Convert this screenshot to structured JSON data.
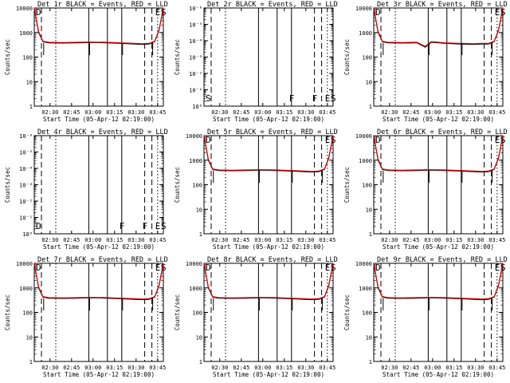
{
  "chart_data": [
    {
      "type": "line",
      "title": "Det 1r BLACK = Events, RED = LLD",
      "xlabel": "Start Time (05-Apr-12 02:19:00)",
      "ylabel": "Counts/sec",
      "log_y": true,
      "yticks": [
        "1",
        "10",
        "100",
        "1000",
        "10000"
      ],
      "ylim_exp": [
        0,
        4
      ],
      "xticks": [
        "02:30",
        "02:45",
        "03:00",
        "03:15",
        "03:30",
        "03:45"
      ],
      "xlim_min": [
        0,
        90
      ],
      "x_min": [
        0,
        3,
        6,
        10,
        20,
        30,
        40,
        50,
        60,
        70,
        75,
        80,
        84,
        87,
        90
      ],
      "series": [
        {
          "name": "Events",
          "values": [
            10000,
            1000,
            420,
            380,
            370,
            380,
            395,
            380,
            360,
            340,
            330,
            340,
            420,
            1200,
            10000
          ]
        },
        {
          "name": "LLD",
          "values": [
            10000,
            1100,
            440,
            400,
            390,
            400,
            410,
            400,
            380,
            360,
            350,
            360,
            440,
            1300,
            10000
          ]
        }
      ],
      "flags": [
        "D",
        "",
        "",
        "",
        "",
        "E",
        "S"
      ]
    },
    {
      "type": "line",
      "title": "Det 2r BLACK = Events, RED = LLD",
      "xlabel": "Start Time (05-Apr-12 02:19:00)",
      "ylabel": "Counts/sec",
      "log_y": true,
      "yticks": [
        "10⁰",
        "10⁻¹",
        "10⁻²",
        "10⁻³",
        "10⁻⁴",
        "10⁻⁵",
        "10⁻⁶"
      ],
      "ylim_exp": [
        0,
        -6
      ],
      "xticks": [
        "02:30",
        "02:45",
        "03:00",
        "03:15",
        "03:30",
        "03:45"
      ],
      "xlim_min": [
        0,
        90
      ],
      "x_min": [],
      "series": [],
      "flags": [
        "S",
        "",
        "",
        "F",
        "F",
        "E",
        "S"
      ]
    },
    {
      "type": "line",
      "title": "Det 3r BLACK = Events, RED = LLD",
      "xlabel": "Start Time (05-Apr-12 02:19:00)",
      "ylabel": "Counts/sec",
      "log_y": true,
      "yticks": [
        "1",
        "10",
        "100",
        "1000",
        "10000"
      ],
      "ylim_exp": [
        0,
        4
      ],
      "xticks": [
        "02:30",
        "02:45",
        "03:00",
        "03:15",
        "03:30",
        "03:45"
      ],
      "xlim_min": [
        0,
        90
      ],
      "x_min": [
        0,
        3,
        6,
        10,
        20,
        30,
        36,
        40,
        50,
        60,
        70,
        75,
        80,
        84,
        87,
        90
      ],
      "series": [
        {
          "name": "Events",
          "values": [
            10000,
            1000,
            420,
            380,
            370,
            380,
            250,
            400,
            360,
            340,
            330,
            340,
            340,
            420,
            1200,
            10000
          ]
        },
        {
          "name": "LLD",
          "values": [
            10000,
            1100,
            440,
            400,
            390,
            400,
            270,
            420,
            380,
            360,
            350,
            360,
            360,
            440,
            1300,
            10000
          ]
        }
      ],
      "flags": [
        "D",
        "",
        "",
        "",
        "",
        "E",
        "S"
      ]
    },
    {
      "type": "line",
      "title": "Det 4r BLACK = Events, RED = LLD",
      "xlabel": "Start Time (05-Apr-12 02:19:00)",
      "ylabel": "Counts/sec",
      "log_y": true,
      "yticks": [
        "10⁰",
        "10⁻¹",
        "10⁻²",
        "10⁻³",
        "10⁻⁴",
        "10⁻⁵",
        "10⁻⁶"
      ],
      "ylim_exp": [
        0,
        -6
      ],
      "xticks": [
        "02:30",
        "02:45",
        "03:00",
        "03:15",
        "03:30",
        "03:45"
      ],
      "xlim_min": [
        0,
        90
      ],
      "x_min": [],
      "series": [],
      "flags": [
        "D",
        "",
        "",
        "F",
        "F",
        "E",
        "S"
      ]
    },
    {
      "type": "line",
      "title": "Det 5r BLACK = Events, RED = LLD",
      "xlabel": "Start Time (05-Apr-12 02:19:00)",
      "ylabel": "Counts/sec",
      "log_y": true,
      "yticks": [
        "1",
        "10",
        "100",
        "1000",
        "10000"
      ],
      "ylim_exp": [
        0,
        4
      ],
      "xticks": [
        "02:30",
        "02:45",
        "03:00",
        "03:15",
        "03:30",
        "03:45"
      ],
      "xlim_min": [
        0,
        90
      ],
      "x_min": [
        0,
        3,
        6,
        10,
        20,
        30,
        40,
        50,
        60,
        70,
        75,
        80,
        84,
        87,
        90
      ],
      "series": [
        {
          "name": "Events",
          "values": [
            10000,
            1000,
            420,
            380,
            370,
            380,
            395,
            380,
            360,
            340,
            330,
            340,
            420,
            1200,
            10000
          ]
        },
        {
          "name": "LLD",
          "values": [
            10000,
            1100,
            440,
            400,
            390,
            400,
            410,
            400,
            380,
            360,
            350,
            360,
            440,
            1300,
            10000
          ]
        }
      ],
      "flags": [
        "D",
        "",
        "",
        "",
        "",
        "E",
        "S"
      ]
    },
    {
      "type": "line",
      "title": "Det 6r BLACK = Events, RED = LLD",
      "xlabel": "Start Time (05-Apr-12 02:19:00)",
      "ylabel": "Counts/sec",
      "log_y": true,
      "yticks": [
        "1",
        "10",
        "100",
        "1000",
        "10000"
      ],
      "ylim_exp": [
        0,
        4
      ],
      "xticks": [
        "02:30",
        "02:45",
        "03:00",
        "03:15",
        "03:30",
        "03:45"
      ],
      "xlim_min": [
        0,
        90
      ],
      "x_min": [
        0,
        3,
        6,
        10,
        20,
        30,
        40,
        50,
        60,
        70,
        75,
        80,
        84,
        87,
        90
      ],
      "series": [
        {
          "name": "Events",
          "values": [
            10000,
            1000,
            420,
            380,
            370,
            380,
            395,
            380,
            360,
            340,
            330,
            340,
            420,
            1200,
            10000
          ]
        },
        {
          "name": "LLD",
          "values": [
            10000,
            1100,
            440,
            400,
            390,
            400,
            410,
            400,
            380,
            360,
            350,
            360,
            440,
            1300,
            10000
          ]
        }
      ],
      "flags": [
        "D",
        "",
        "",
        "",
        "",
        "E",
        "S"
      ]
    },
    {
      "type": "line",
      "title": "Det 7r BLACK = Events, RED = LLD",
      "xlabel": "Start Time (05-Apr-12 02:19:00)",
      "ylabel": "Counts/sec",
      "log_y": true,
      "yticks": [
        "1",
        "10",
        "100",
        "1000",
        "10000"
      ],
      "ylim_exp": [
        0,
        4
      ],
      "xticks": [
        "02:30",
        "02:45",
        "03:00",
        "03:15",
        "03:30",
        "03:45"
      ],
      "xlim_min": [
        0,
        90
      ],
      "x_min": [
        0,
        3,
        6,
        10,
        20,
        30,
        40,
        50,
        60,
        70,
        75,
        80,
        84,
        87,
        90
      ],
      "series": [
        {
          "name": "Events",
          "values": [
            10000,
            1000,
            420,
            380,
            370,
            380,
            395,
            380,
            360,
            340,
            330,
            340,
            420,
            1200,
            10000
          ]
        },
        {
          "name": "LLD",
          "values": [
            10000,
            1100,
            440,
            400,
            390,
            400,
            410,
            400,
            380,
            360,
            350,
            360,
            440,
            1300,
            10000
          ]
        }
      ],
      "flags": [
        "D",
        "",
        "",
        "",
        "",
        "E",
        "S"
      ]
    },
    {
      "type": "line",
      "title": "Det 8r BLACK = Events, RED = LLD",
      "xlabel": "Start Time (05-Apr-12 02:19:00)",
      "ylabel": "Counts/sec",
      "log_y": true,
      "yticks": [
        "1",
        "10",
        "100",
        "1000",
        "10000"
      ],
      "ylim_exp": [
        0,
        4
      ],
      "xticks": [
        "02:30",
        "02:45",
        "03:00",
        "03:15",
        "03:30",
        "03:45"
      ],
      "xlim_min": [
        0,
        90
      ],
      "x_min": [
        0,
        3,
        6,
        10,
        20,
        30,
        40,
        50,
        60,
        70,
        75,
        80,
        84,
        87,
        90
      ],
      "series": [
        {
          "name": "Events",
          "values": [
            10000,
            1000,
            420,
            380,
            370,
            380,
            395,
            380,
            360,
            340,
            330,
            340,
            420,
            1200,
            10000
          ]
        },
        {
          "name": "LLD",
          "values": [
            10000,
            1100,
            440,
            400,
            390,
            400,
            410,
            400,
            380,
            360,
            350,
            360,
            440,
            1300,
            10000
          ]
        }
      ],
      "flags": [
        "D",
        "",
        "",
        "",
        "",
        "E",
        "S"
      ]
    },
    {
      "type": "line",
      "title": "Det 9r BLACK = Events, RED = LLD",
      "xlabel": "Start Time (05-Apr-12 02:19:00)",
      "ylabel": "Counts/sec",
      "log_y": true,
      "yticks": [
        "1",
        "10",
        "100",
        "1000",
        "10000"
      ],
      "ylim_exp": [
        0,
        4
      ],
      "xticks": [
        "02:30",
        "02:45",
        "03:00",
        "03:15",
        "03:30",
        "03:45"
      ],
      "xlim_min": [
        0,
        90
      ],
      "x_min": [
        0,
        3,
        6,
        10,
        20,
        30,
        40,
        50,
        60,
        70,
        75,
        80,
        84,
        87,
        90
      ],
      "series": [
        {
          "name": "Events",
          "values": [
            10000,
            1000,
            420,
            380,
            370,
            380,
            395,
            380,
            360,
            340,
            330,
            340,
            420,
            1200,
            10000
          ]
        },
        {
          "name": "LLD",
          "values": [
            10000,
            1100,
            440,
            400,
            390,
            400,
            410,
            400,
            380,
            360,
            350,
            360,
            440,
            1300,
            10000
          ]
        }
      ],
      "flags": [
        "D",
        "",
        "",
        "",
        "",
        "E",
        "S"
      ]
    }
  ],
  "markers": {
    "times_min": [
      5,
      15,
      38,
      51,
      61,
      77,
      82,
      86
    ],
    "styles": [
      "dashed",
      "dotted",
      "solid",
      "solid",
      "solid",
      "dashed",
      "dashed",
      "dotted"
    ]
  },
  "colors": {
    "events": "#000000",
    "lld": "#d40000"
  }
}
